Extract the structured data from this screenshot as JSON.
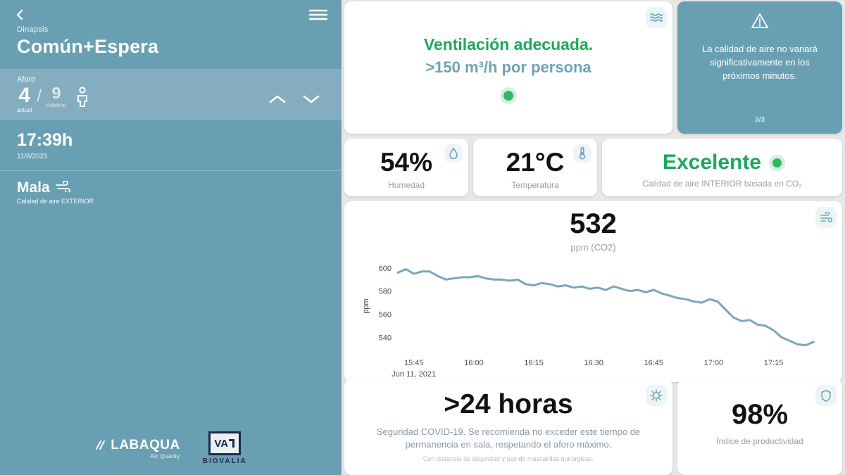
{
  "colors": {
    "teal": "#699fb3",
    "teal_light": "#84aec0",
    "green": "#1fa85c",
    "dot_green": "#2eb860",
    "chart_line": "#7aa7ba"
  },
  "sidebar": {
    "app_label": "Dinapsis",
    "room_title": "Común+Espera",
    "aforo": {
      "label": "Aforo",
      "current": "4",
      "current_label": "actual",
      "slash": "/",
      "max": "9",
      "max_label": "máximo"
    },
    "time": "17:39h",
    "date": "11/6/2021",
    "exterior": {
      "quality": "Mala",
      "caption": "Calidad de aire EXTERIOR"
    },
    "logos": {
      "labaqua": "LABAQUA",
      "labaqua_sub": "Air Quality",
      "biovalia_mark": "VA",
      "biovalia": "BIOVALIA"
    }
  },
  "ventilation_card": {
    "title": "Ventilación adecuada.",
    "subtitle": ">150 m³/h por persona"
  },
  "forecast_card": {
    "text": "La calidad de aire no variará significativamente en los próximos minutos.",
    "page": "3/3"
  },
  "humidity_card": {
    "value": "54%",
    "label": "Humedad"
  },
  "temperature_card": {
    "value": "21°C",
    "label": "Temperatura"
  },
  "quality_card": {
    "value": "Excelente",
    "label": "Calidad de aire INTERIOR basada en CO₂"
  },
  "co2_card": {
    "value": "532",
    "unit": "ppm (CO2)"
  },
  "covid_card": {
    "value": ">24 horas",
    "text": "Seguridad COVID-19. Se recomienda no exceder este tiempo de permanencia en sala, respetando el aforo máximo.",
    "subtext": "Con distancia de seguridad y uso de mascarillas quirúrgicas."
  },
  "productivity_card": {
    "value": "98%",
    "label": "Índice de productividad"
  },
  "chart_data": {
    "type": "line",
    "title": "532 ppm (CO2)",
    "ylabel": "ppm",
    "date_label": "Jun 11, 2021",
    "ylim": [
      528,
      606
    ],
    "yticks": [
      540,
      560,
      580,
      600
    ],
    "xlim": [
      941,
      1046
    ],
    "xticks": [
      {
        "t": 945,
        "label": "15:45"
      },
      {
        "t": 960,
        "label": "16:00"
      },
      {
        "t": 975,
        "label": "16:15"
      },
      {
        "t": 990,
        "label": "16:30"
      },
      {
        "t": 1005,
        "label": "16:45"
      },
      {
        "t": 1020,
        "label": "17:00"
      },
      {
        "t": 1035,
        "label": "17:15"
      }
    ],
    "points": [
      [
        941,
        596
      ],
      [
        943,
        599
      ],
      [
        945,
        595
      ],
      [
        947,
        597
      ],
      [
        949,
        597
      ],
      [
        951,
        593
      ],
      [
        953,
        590
      ],
      [
        955,
        591
      ],
      [
        957,
        592
      ],
      [
        959,
        592
      ],
      [
        961,
        593
      ],
      [
        963,
        591
      ],
      [
        965,
        590
      ],
      [
        967,
        590
      ],
      [
        969,
        589
      ],
      [
        971,
        590
      ],
      [
        973,
        586
      ],
      [
        975,
        585
      ],
      [
        977,
        587
      ],
      [
        979,
        586
      ],
      [
        981,
        584
      ],
      [
        983,
        585
      ],
      [
        985,
        583
      ],
      [
        987,
        584
      ],
      [
        989,
        582
      ],
      [
        991,
        583
      ],
      [
        993,
        581
      ],
      [
        995,
        584
      ],
      [
        997,
        582
      ],
      [
        999,
        580
      ],
      [
        1001,
        581
      ],
      [
        1003,
        579
      ],
      [
        1005,
        581
      ],
      [
        1007,
        578
      ],
      [
        1009,
        576
      ],
      [
        1011,
        574
      ],
      [
        1013,
        573
      ],
      [
        1015,
        571
      ],
      [
        1017,
        570
      ],
      [
        1019,
        573
      ],
      [
        1021,
        571
      ],
      [
        1023,
        564
      ],
      [
        1025,
        557
      ],
      [
        1027,
        554
      ],
      [
        1029,
        555
      ],
      [
        1031,
        551
      ],
      [
        1033,
        550
      ],
      [
        1035,
        546
      ],
      [
        1037,
        540
      ],
      [
        1039,
        537
      ],
      [
        1041,
        534
      ],
      [
        1043,
        533
      ],
      [
        1045,
        536
      ]
    ]
  }
}
